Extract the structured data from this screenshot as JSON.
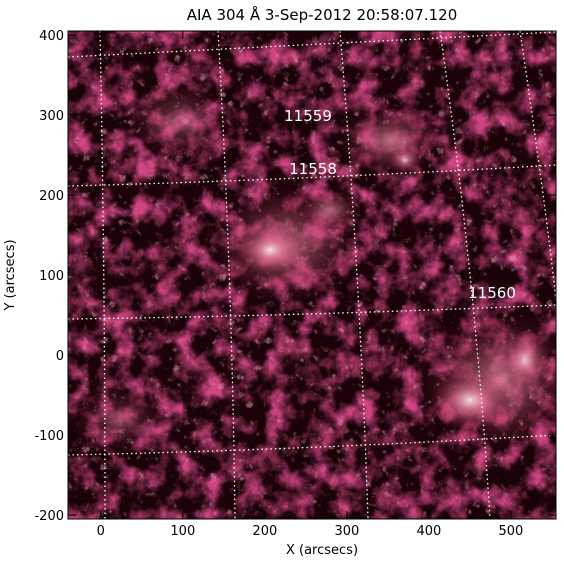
{
  "title": "AIA 304 Å   3-Sep-2012 20:58:07.120",
  "xlabel": "X (arcsecs)",
  "ylabel": "Y (arcsecs)",
  "x_ticks": [
    "0",
    "100",
    "200",
    "300",
    "400",
    "500"
  ],
  "y_ticks": [
    "400",
    "300",
    "200",
    "100",
    "0",
    "-100",
    "-200"
  ],
  "x_range": [
    -40,
    555
  ],
  "y_range": [
    -205,
    405
  ],
  "active_regions": [
    "11559",
    "11558",
    "11560"
  ],
  "colors": {
    "background": "#1a0208",
    "mid": "#8a1a3a",
    "bright": "#f2c4d0",
    "grid": "#ffffff"
  }
}
